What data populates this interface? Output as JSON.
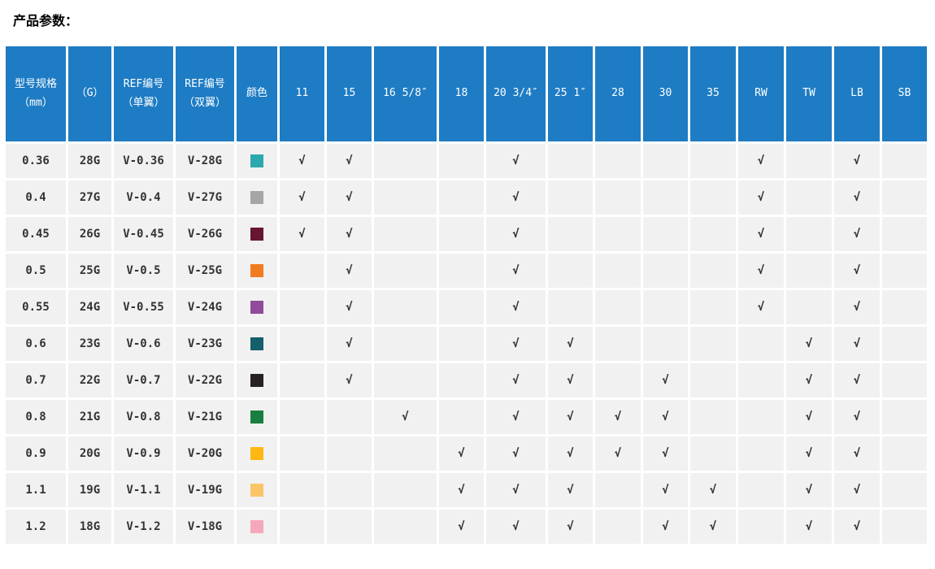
{
  "page": {
    "title": "产品参数："
  },
  "colors": {
    "header_bg": "#1E7CC4",
    "header_text": "#FFFFFF",
    "row_bg": "#F1F1F1",
    "body_text": "#333333",
    "highlight_text": "#F3641E",
    "check_color": "#2B2B2B"
  },
  "table": {
    "check_glyph": "√",
    "columns": [
      "型号规格\n（mm）",
      "（G）",
      "REF编号\n（单翼）",
      "REF编号\n（双翼）",
      "颜色",
      "11",
      "15",
      "16 5/8″",
      "18",
      "20 3/4″",
      "25 1″",
      "28",
      "30",
      "35",
      "RW",
      "TW",
      "LB",
      "SB"
    ],
    "check_columns": [
      "11",
      "15",
      "16 5/8″",
      "18",
      "20 3/4″",
      "25 1″",
      "28",
      "30",
      "35",
      "RW",
      "TW",
      "LB",
      "SB"
    ],
    "rows": [
      {
        "size": "0.36",
        "gauge": "28G",
        "ref_single": "V-0.36",
        "ref_double": "V-28G",
        "ref_double_highlighted": false,
        "color_hex": "#2CA9AE",
        "checks": [
          "11",
          "15",
          "20 3/4″",
          "RW",
          "LB"
        ]
      },
      {
        "size": "0.4",
        "gauge": "27G",
        "ref_single": "V-0.4",
        "ref_double": "V-27G",
        "ref_double_highlighted": false,
        "color_hex": "#A6A6A6",
        "checks": [
          "11",
          "15",
          "20 3/4″",
          "RW",
          "LB"
        ]
      },
      {
        "size": "0.45",
        "gauge": "26G",
        "ref_single": "V-0.45",
        "ref_double": "V-26G",
        "ref_double_highlighted": false,
        "color_hex": "#66162E",
        "checks": [
          "11",
          "15",
          "20 3/4″",
          "RW",
          "LB"
        ]
      },
      {
        "size": "0.5",
        "gauge": "25G",
        "ref_single": "V-0.5",
        "ref_double": "V-25G",
        "ref_double_highlighted": false,
        "color_hex": "#F27B21",
        "checks": [
          "15",
          "20 3/4″",
          "RW",
          "LB"
        ]
      },
      {
        "size": "0.55",
        "gauge": "24G",
        "ref_single": "V-0.55",
        "ref_double": "V-24G",
        "ref_double_highlighted": false,
        "color_hex": "#914A9C",
        "checks": [
          "15",
          "20 3/4″",
          "RW",
          "LB"
        ]
      },
      {
        "size": "0.6",
        "gauge": "23G",
        "ref_single": "V-0.6",
        "ref_double": "V-23G",
        "ref_double_highlighted": false,
        "color_hex": "#145F6B",
        "checks": [
          "15",
          "20 3/4″",
          "25 1″",
          "TW",
          "LB"
        ]
      },
      {
        "size": "0.7",
        "gauge": "22G",
        "ref_single": "V-0.7",
        "ref_double": "V-22G",
        "ref_double_highlighted": false,
        "color_hex": "#272122",
        "checks": [
          "15",
          "20 3/4″",
          "25 1″",
          "30",
          "TW",
          "LB"
        ]
      },
      {
        "size": "0.8",
        "gauge": "21G",
        "ref_single": "V-0.8",
        "ref_double": "V-21G",
        "ref_double_highlighted": true,
        "color_hex": "#187F41",
        "checks": [
          "16 5/8″",
          "20 3/4″",
          "25 1″",
          "28",
          "30",
          "TW",
          "LB"
        ]
      },
      {
        "size": "0.9",
        "gauge": "20G",
        "ref_single": "V-0.9",
        "ref_double": "V-20G",
        "ref_double_highlighted": false,
        "color_hex": "#FDB813",
        "checks": [
          "18",
          "20 3/4″",
          "25 1″",
          "28",
          "30",
          "TW",
          "LB"
        ]
      },
      {
        "size": "1.1",
        "gauge": "19G",
        "ref_single": "V-1.1",
        "ref_double": "V-19G",
        "ref_double_highlighted": false,
        "color_hex": "#FAC567",
        "checks": [
          "18",
          "20 3/4″",
          "25 1″",
          "30",
          "35",
          "TW",
          "LB"
        ]
      },
      {
        "size": "1.2",
        "gauge": "18G",
        "ref_single": "V-1.2",
        "ref_double": "V-18G",
        "ref_double_highlighted": false,
        "color_hex": "#F5A8BC",
        "checks": [
          "18",
          "20 3/4″",
          "25 1″",
          "30",
          "35",
          "TW",
          "LB"
        ]
      }
    ]
  }
}
